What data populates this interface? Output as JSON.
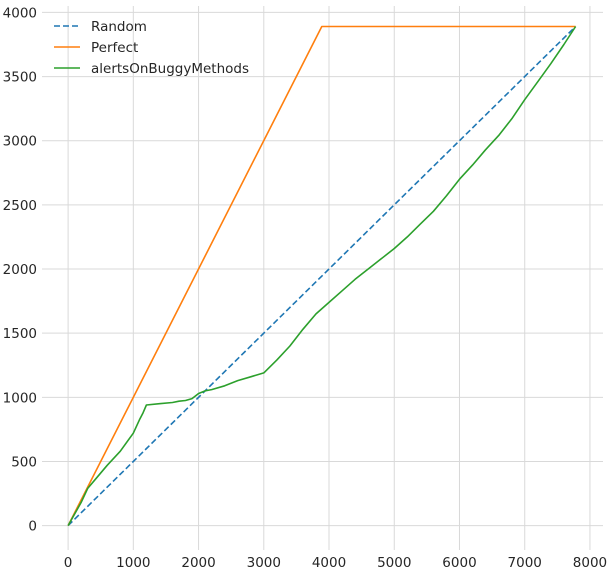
{
  "chart_data": {
    "type": "line",
    "title": "",
    "xlabel": "",
    "ylabel": "",
    "xlim": [
      -400,
      8200
    ],
    "ylim": [
      -190,
      4050
    ],
    "x_ticks": [
      0,
      1000,
      2000,
      3000,
      4000,
      5000,
      6000,
      7000,
      8000
    ],
    "y_ticks": [
      0,
      500,
      1000,
      1500,
      2000,
      2500,
      3000,
      3500,
      4000
    ],
    "grid": true,
    "legend_position": "upper-left",
    "series": [
      {
        "name": "Random",
        "color": "#1f77b4",
        "dash": true,
        "x": [
          0,
          7780
        ],
        "y": [
          0,
          3890
        ]
      },
      {
        "name": "Perfect",
        "color": "#ff7f0e",
        "dash": false,
        "x": [
          0,
          3890,
          7780
        ],
        "y": [
          0,
          3890,
          3890
        ]
      },
      {
        "name": "alertsOnBuggyMethods",
        "color": "#2ca02c",
        "dash": false,
        "x": [
          0,
          200,
          300,
          400,
          600,
          800,
          1000,
          1100,
          1150,
          1200,
          1400,
          1600,
          1700,
          1800,
          1900,
          2000,
          2100,
          2200,
          2400,
          2600,
          2800,
          3000,
          3200,
          3400,
          3600,
          3800,
          4000,
          4200,
          4400,
          4600,
          4800,
          5000,
          5200,
          5400,
          5600,
          5800,
          6000,
          6200,
          6400,
          6600,
          6800,
          7000,
          7200,
          7400,
          7600,
          7780
        ],
        "y": [
          0,
          180,
          290,
          350,
          470,
          580,
          720,
          830,
          880,
          940,
          950,
          960,
          970,
          975,
          990,
          1030,
          1050,
          1060,
          1090,
          1130,
          1160,
          1190,
          1290,
          1400,
          1530,
          1650,
          1740,
          1830,
          1920,
          2000,
          2080,
          2160,
          2250,
          2350,
          2450,
          2570,
          2700,
          2810,
          2930,
          3040,
          3170,
          3320,
          3460,
          3600,
          3750,
          3890
        ]
      }
    ]
  }
}
